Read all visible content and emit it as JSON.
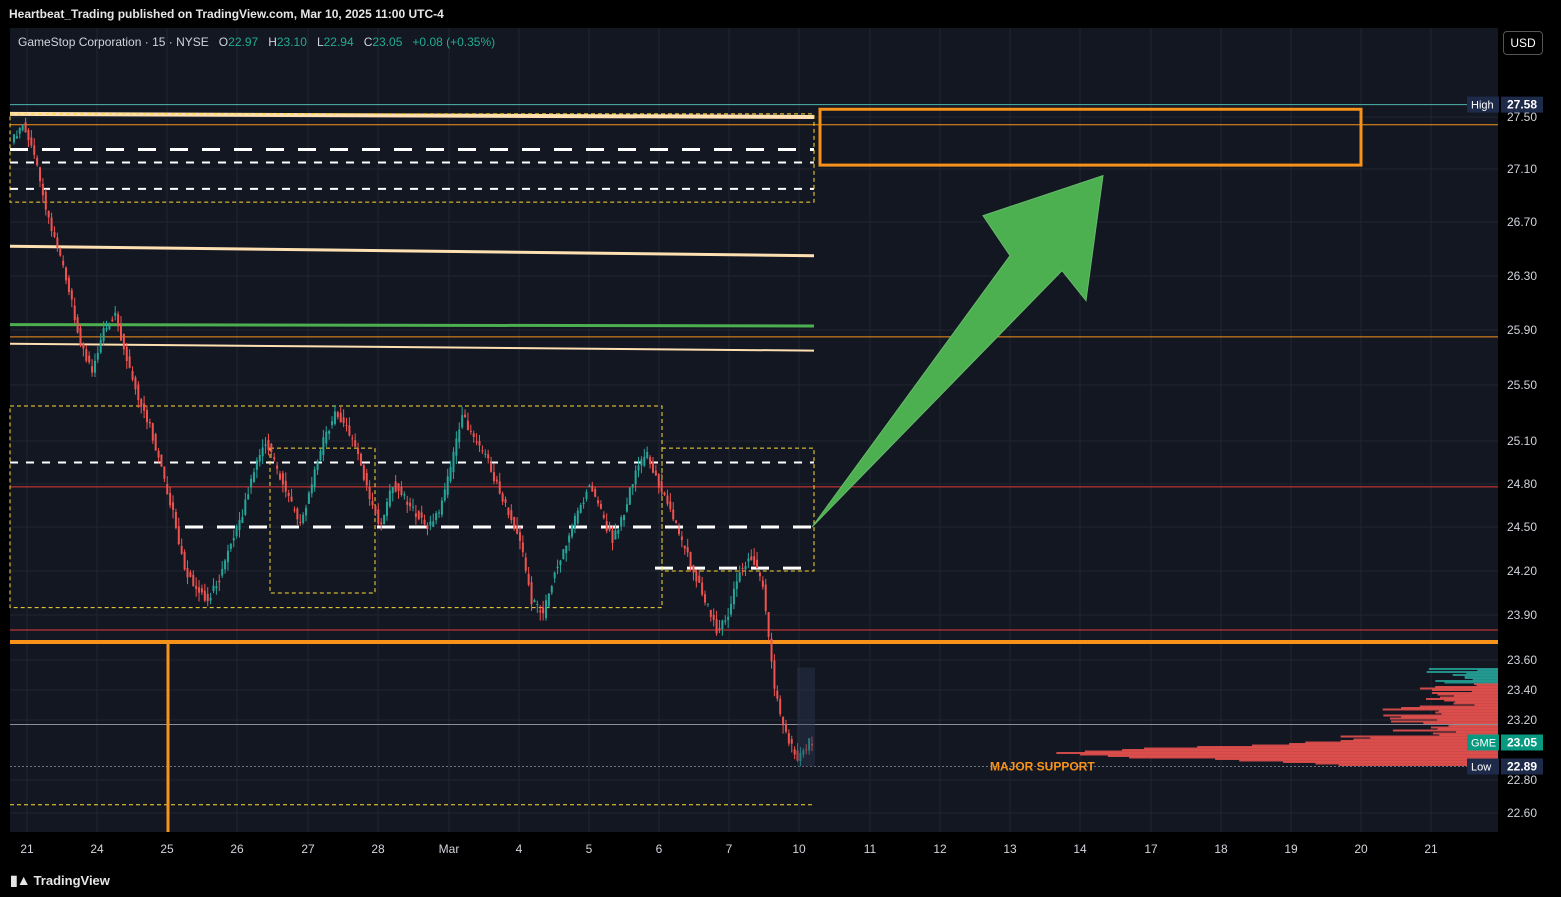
{
  "header": {
    "published_text": "Heartbeat_Trading published on TradingView.com, Mar 10, 2025 11:00 UTC-4"
  },
  "symbol_line": {
    "name": "GameStop Corporation · 15 · NYSE",
    "o_label": "O",
    "o_value": "22.97",
    "h_label": "H",
    "h_value": "23.10",
    "l_label": "L",
    "l_value": "22.94",
    "c_label": "C",
    "c_value": "23.05",
    "change": "+0.08 (+0.35%)"
  },
  "currency_button": "USD",
  "footer": {
    "brand": "TradingView",
    "logo_icon": "tradingview-logo-icon"
  },
  "colors": {
    "background": "#131722",
    "up": "#26a69a",
    "down": "#ef5350",
    "orange": "#f7931a",
    "arrow_green": "#4caf50",
    "cream": "#ffe0b2",
    "grid": "#1f2430"
  },
  "chart_data": {
    "type": "candlestick",
    "title": "",
    "xlabel": "",
    "ylabel": "",
    "ylim": [
      22.5,
      27.7
    ],
    "grid": true,
    "y_ticks": [
      "27.50",
      "27.10",
      "26.70",
      "26.30",
      "25.90",
      "25.50",
      "25.10",
      "24.80",
      "24.50",
      "24.20",
      "23.90",
      "23.60",
      "23.40",
      "23.20",
      "22.80",
      "22.60"
    ],
    "x_ticks": [
      "21",
      "24",
      "25",
      "26",
      "27",
      "28",
      "Mar",
      "4",
      "5",
      "6",
      "7",
      "10",
      "11",
      "12",
      "13",
      "14",
      "17",
      "18",
      "19",
      "20",
      "21"
    ],
    "price_labels": [
      {
        "label": "High",
        "value": "27.58"
      },
      {
        "label": "GME",
        "value": "23.05"
      },
      {
        "label": "Low",
        "value": "22.89"
      }
    ],
    "annotations": [
      {
        "text": "MAJOR SUPPORT",
        "price": 22.89
      },
      {
        "type": "target-box",
        "from": 27.13,
        "to": 27.55
      },
      {
        "type": "arrow",
        "from_price": 24.5,
        "to_price": 27.05
      },
      {
        "type": "horizontal-line",
        "price": 27.58,
        "style": "solid"
      },
      {
        "type": "horizontal-line",
        "price": 27.44,
        "style": "solid"
      },
      {
        "type": "horizontal-line",
        "price": 25.85,
        "style": "solid"
      },
      {
        "type": "horizontal-line",
        "price": 24.78,
        "style": "solid"
      },
      {
        "type": "horizontal-line",
        "price": 23.8,
        "style": "solid"
      },
      {
        "type": "horizontal-line",
        "price": 23.72,
        "style": "solid"
      },
      {
        "type": "horizontal-line",
        "price": 23.17,
        "style": "solid"
      },
      {
        "type": "moving-average",
        "values": [
          26.52,
          26.45
        ]
      },
      {
        "type": "moving-average",
        "values": [
          25.94,
          25.93
        ]
      },
      {
        "type": "moving-average",
        "values": [
          25.8,
          25.75
        ]
      },
      {
        "type": "moving-average",
        "values": [
          27.52,
          27.5
        ]
      }
    ],
    "close_path": [
      27.3,
      27.45,
      27.2,
      26.8,
      26.5,
      26.2,
      25.8,
      25.6,
      25.9,
      26.0,
      25.7,
      25.4,
      25.2,
      24.9,
      24.6,
      24.2,
      24.1,
      24.0,
      24.15,
      24.4,
      24.6,
      24.9,
      25.1,
      24.9,
      24.7,
      24.5,
      24.8,
      25.1,
      25.3,
      25.2,
      25.0,
      24.7,
      24.5,
      24.8,
      24.7,
      24.6,
      24.5,
      24.6,
      24.9,
      25.3,
      25.1,
      25.0,
      24.8,
      24.6,
      24.4,
      24.0,
      23.9,
      24.2,
      24.4,
      24.6,
      24.8,
      24.6,
      24.4,
      24.6,
      24.9,
      25.0,
      24.8,
      24.6,
      24.4,
      24.2,
      24.0,
      23.8,
      23.9,
      24.2,
      24.3,
      24.1,
      23.4,
      23.1,
      22.95,
      23.05
    ],
    "volume_profile": {
      "price_from": 22.9,
      "price_to": 23.55
    }
  }
}
